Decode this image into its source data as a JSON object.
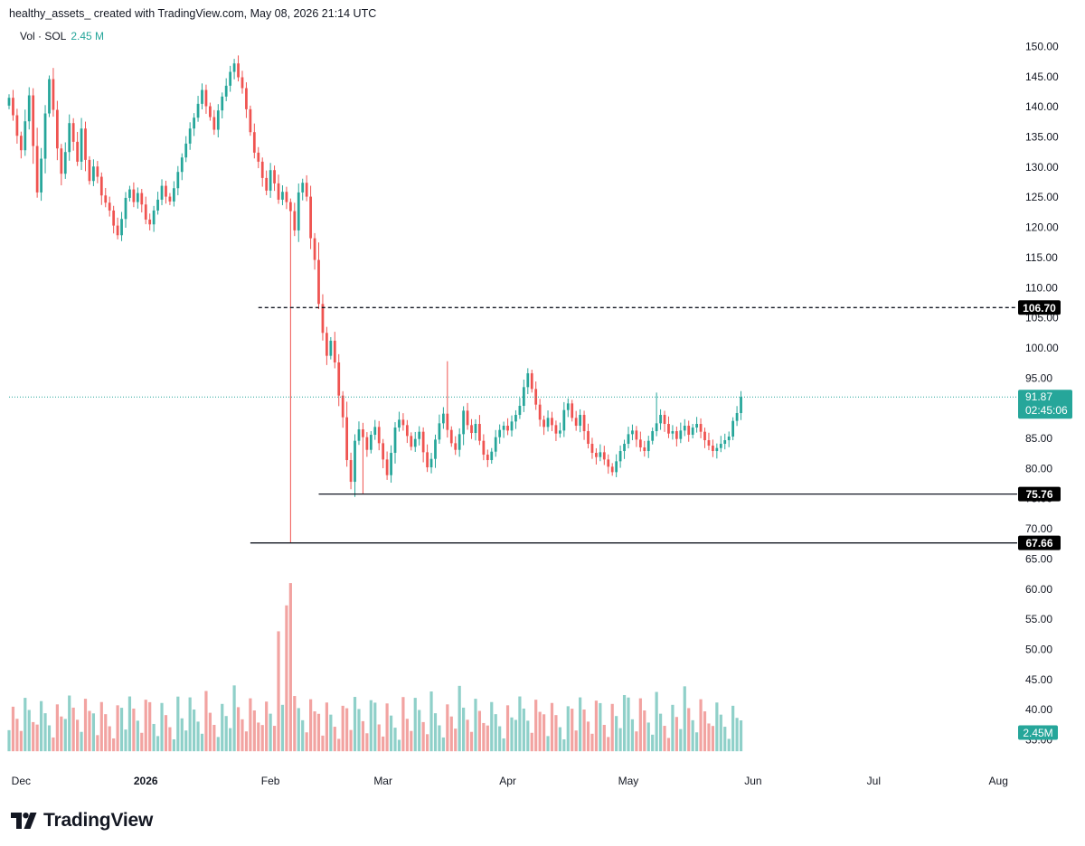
{
  "header": {
    "text": "healthy_assets_ created with TradingView.com, May 08, 2026 21:14 UTC"
  },
  "legend": {
    "label": "Vol · SOL",
    "value": "2.45 M"
  },
  "footer": {
    "brand": "TradingView",
    "logo_icon": "tradingview-logo-icon"
  },
  "colors": {
    "up": "#26a69a",
    "down": "#ef5350",
    "up_volume": "#8fd0c9",
    "down_volume": "#f2a3a1",
    "axis_text": "#131722",
    "badge_dark": "#000000",
    "current_price_line": "#26a69a"
  },
  "chart_data": {
    "type": "candlestick",
    "symbol": "SOL",
    "y_axis": {
      "range": [
        31.0,
        151.5
      ],
      "ticks": [
        "150.00",
        "145.00",
        "140.00",
        "135.00",
        "130.00",
        "125.00",
        "120.00",
        "115.00",
        "110.00",
        "105.00",
        "100.00",
        "95.00",
        "90.00",
        "85.00",
        "80.00",
        "75.00",
        "70.00",
        "65.00",
        "60.00",
        "55.00",
        "50.00",
        "45.00",
        "40.00",
        "35.00"
      ]
    },
    "x_axis": {
      "start": "2025-11-28",
      "end": "2026-08-05",
      "ticks": [
        {
          "label": "Dec",
          "date": "2025-12-01",
          "bold": false
        },
        {
          "label": "2026",
          "date": "2026-01-01",
          "bold": true
        },
        {
          "label": "Feb",
          "date": "2026-02-01",
          "bold": false
        },
        {
          "label": "Mar",
          "date": "2026-03-01",
          "bold": false
        },
        {
          "label": "Apr",
          "date": "2026-04-01",
          "bold": false
        },
        {
          "label": "May",
          "date": "2026-05-01",
          "bold": false
        },
        {
          "label": "Jun",
          "date": "2026-06-01",
          "bold": false
        },
        {
          "label": "Jul",
          "date": "2026-07-01",
          "bold": false
        },
        {
          "label": "Aug",
          "date": "2026-08-01",
          "bold": false
        }
      ]
    },
    "price_series": {
      "start_date": "2025-11-28",
      "interval": "1D",
      "close": [
        141.5,
        138.6,
        135.2,
        132.8,
        137.6,
        141.9,
        133.5,
        125.8,
        131.4,
        138.9,
        144.6,
        139.5,
        133.1,
        128.9,
        132.5,
        137.3,
        134.2,
        130.9,
        136.4,
        131.2,
        127.7,
        130.1,
        128.4,
        125.3,
        124.1,
        122.8,
        120.3,
        118.7,
        121.4,
        124.9,
        126.3,
        124.2,
        125.7,
        123.8,
        121.3,
        120.5,
        122.8,
        124.6,
        126.9,
        125.1,
        124.3,
        126.5,
        129.2,
        131.6,
        133.9,
        136.4,
        138.2,
        140.5,
        142.8,
        140.1,
        138.3,
        136.2,
        139.4,
        141.7,
        143.5,
        145.8,
        147.2,
        144.9,
        143.1,
        139.6,
        135.8,
        132.4,
        130.9,
        128.2,
        126.1,
        129.5,
        127.3,
        124.6,
        125.9,
        124.2,
        122.7,
        119.5,
        125.8,
        127.4,
        125.1,
        118.2,
        114.6,
        107.3,
        102.5,
        98.7,
        101.2,
        97.6,
        92.1,
        88.5,
        81.4,
        77.8,
        84.6,
        86.5,
        85.2,
        83.1,
        85.6,
        86.9,
        84.2,
        81.5,
        78.9,
        82.6,
        86.8,
        88.1,
        87.2,
        85.4,
        83.6,
        84.9,
        86.1,
        82.7,
        80.2,
        81.6,
        84.8,
        87.5,
        89.1,
        86.4,
        84.2,
        83.1,
        85.7,
        89.6,
        87.2,
        85.9,
        87.4,
        84.6,
        82.3,
        81.4,
        82.8,
        85.2,
        86.4,
        87.1,
        86.3,
        87.8,
        88.9,
        90.4,
        93.5,
        95.8,
        93.2,
        90.6,
        88.1,
        86.9,
        88.4,
        87.2,
        85.8,
        86.3,
        89.7,
        90.8,
        88.4,
        87.1,
        88.9,
        86.2,
        84.1,
        82.6,
        81.9,
        82.7,
        81.5,
        80.3,
        79.4,
        81.2,
        82.9,
        84.1,
        85.7,
        86.3,
        84.8,
        83.5,
        82.9,
        84.6,
        86.2,
        87.5,
        88.9,
        87.4,
        85.8,
        86.2,
        84.9,
        86.3,
        87.1,
        85.6,
        86.8,
        87.4,
        86.1,
        84.7,
        83.8,
        82.9,
        83.4,
        84.1,
        84.7,
        85.3,
        87.9,
        89.2,
        91.87
      ],
      "open": [
        140.2,
        141.5,
        138.6,
        135.2,
        132.8,
        137.6,
        141.9,
        133.5,
        125.8,
        131.4,
        138.9,
        144.6,
        139.5,
        133.1,
        128.9,
        132.5,
        137.3,
        134.2,
        130.9,
        136.4,
        131.2,
        127.7,
        130.1,
        128.4,
        125.3,
        124.1,
        122.8,
        120.3,
        118.7,
        121.4,
        124.9,
        126.3,
        124.2,
        125.7,
        123.8,
        121.3,
        120.5,
        122.8,
        124.6,
        126.9,
        125.1,
        124.3,
        126.5,
        129.2,
        131.6,
        133.9,
        136.4,
        138.2,
        140.5,
        142.8,
        140.1,
        138.3,
        136.2,
        139.4,
        141.7,
        143.5,
        145.8,
        147.2,
        144.9,
        143.1,
        139.6,
        135.8,
        132.4,
        130.9,
        128.2,
        126.1,
        129.5,
        127.3,
        124.6,
        125.9,
        124.2,
        122.7,
        119.5,
        125.8,
        127.4,
        125.1,
        118.2,
        114.6,
        107.3,
        102.5,
        98.7,
        101.2,
        97.6,
        92.1,
        88.5,
        81.4,
        77.8,
        84.6,
        86.5,
        85.2,
        83.1,
        85.6,
        86.9,
        84.2,
        81.5,
        78.9,
        82.6,
        86.8,
        88.1,
        87.2,
        85.4,
        83.6,
        84.9,
        86.1,
        82.7,
        80.2,
        81.6,
        84.8,
        87.5,
        89.1,
        86.4,
        84.2,
        83.1,
        85.7,
        89.6,
        87.2,
        85.9,
        87.4,
        84.6,
        82.3,
        81.4,
        82.8,
        85.2,
        86.4,
        87.1,
        86.3,
        87.8,
        88.9,
        90.4,
        93.5,
        95.8,
        93.2,
        90.6,
        88.1,
        86.9,
        88.4,
        87.2,
        85.8,
        86.3,
        89.7,
        90.8,
        88.4,
        87.1,
        88.9,
        86.2,
        84.1,
        82.6,
        81.9,
        82.7,
        81.5,
        80.3,
        79.4,
        81.2,
        82.9,
        84.1,
        85.7,
        86.3,
        84.8,
        83.5,
        82.9,
        84.6,
        86.2,
        87.5,
        88.9,
        87.4,
        85.8,
        86.2,
        84.9,
        86.3,
        87.1,
        85.6,
        86.8,
        87.4,
        86.1,
        84.7,
        83.8,
        82.9,
        83.4,
        84.1,
        84.7,
        85.3,
        87.9,
        89.2
      ],
      "low_overrides": [
        {
          "date": "2026-02-06",
          "low": 67.66
        },
        {
          "date": "2026-02-24",
          "low": 75.76
        }
      ],
      "high_overrides": [
        {
          "date": "2026-03-17",
          "high": 97.8
        },
        {
          "date": "2026-05-08",
          "high": 92.6
        }
      ]
    },
    "volume_series": {
      "unit": "M",
      "spike_dates": [
        {
          "date": "2026-02-03",
          "level": 53.0
        },
        {
          "date": "2026-02-05",
          "level": 57.3
        },
        {
          "date": "2026-02-06",
          "level": 61.0
        }
      ]
    },
    "horizontal_lines": [
      {
        "value": 106.7,
        "label": "106.70",
        "style": "dashed",
        "from_date": "2026-01-29"
      },
      {
        "value": 75.76,
        "label": "75.76",
        "style": "solid",
        "from_date": "2026-02-13"
      },
      {
        "value": 67.66,
        "label": "67.66",
        "style": "solid",
        "from_date": "2026-01-27"
      }
    ],
    "current_price": {
      "value": 91.87,
      "label": "91.87",
      "countdown": "02:45:06"
    },
    "volume_badge": "2.45M"
  }
}
